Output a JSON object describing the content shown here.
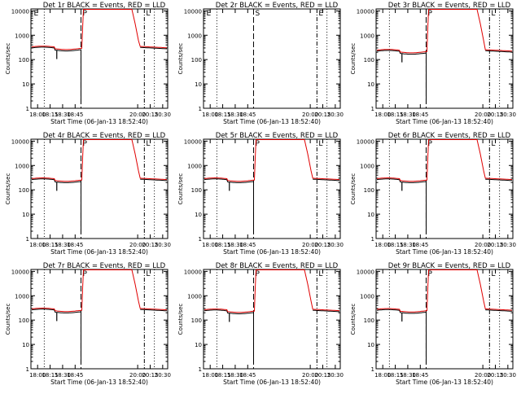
{
  "chart_data": {
    "type": "line",
    "layout": "3x3 grid",
    "yscale": "log",
    "ylim": [
      1,
      12000
    ],
    "yticks": [
      1,
      10,
      100,
      1000,
      10000
    ],
    "ytick_labels": [
      "1",
      "10",
      "100",
      "1000",
      "10000"
    ],
    "ylabel": "Counts/sec",
    "xlabel": "Start Time (06-Jan-13 18:52:40)",
    "xlim": [
      "17:52",
      "20:36"
    ],
    "xticks": [
      "18:00",
      "18:15",
      "18:30",
      "18:45",
      "20:00",
      "20:15",
      "20:30"
    ],
    "grid": false,
    "colors": {
      "events": "#000000",
      "lld": "#e00000",
      "axes": "#000000"
    },
    "panels": [
      {
        "title": "Det 1r BLACK = Events, RED = LLD",
        "markers": [
          "E",
          "P",
          "L"
        ],
        "base": 300
      },
      {
        "title": "Det 2r BLACK = Events, RED = LLD",
        "markers": [
          "E",
          "S",
          "E"
        ],
        "base": null
      },
      {
        "title": "Det 3r BLACK = Events, RED = LLD",
        "markers": [
          "P",
          "L"
        ],
        "base": 220
      },
      {
        "title": "Det 4r BLACK = Events, RED = LLD",
        "markers": [
          "P",
          "L"
        ],
        "base": 260
      },
      {
        "title": "Det 5r BLACK = Events, RED = LLD",
        "markers": [
          "P",
          "L"
        ],
        "base": 260
      },
      {
        "title": "Det 6r BLACK = Events, RED = LLD",
        "markers": [
          "P",
          "L"
        ],
        "base": 260
      },
      {
        "title": "Det 7r BLACK = Events, RED = LLD",
        "markers": [
          "P",
          "L"
        ],
        "base": 260
      },
      {
        "title": "Det 8r BLACK = Events, RED = LLD",
        "markers": [
          "P",
          "L"
        ],
        "base": 240
      },
      {
        "title": "Det 9r BLACK = Events, RED = LLD",
        "markers": [
          "P",
          "L"
        ],
        "base": 250
      }
    ]
  }
}
